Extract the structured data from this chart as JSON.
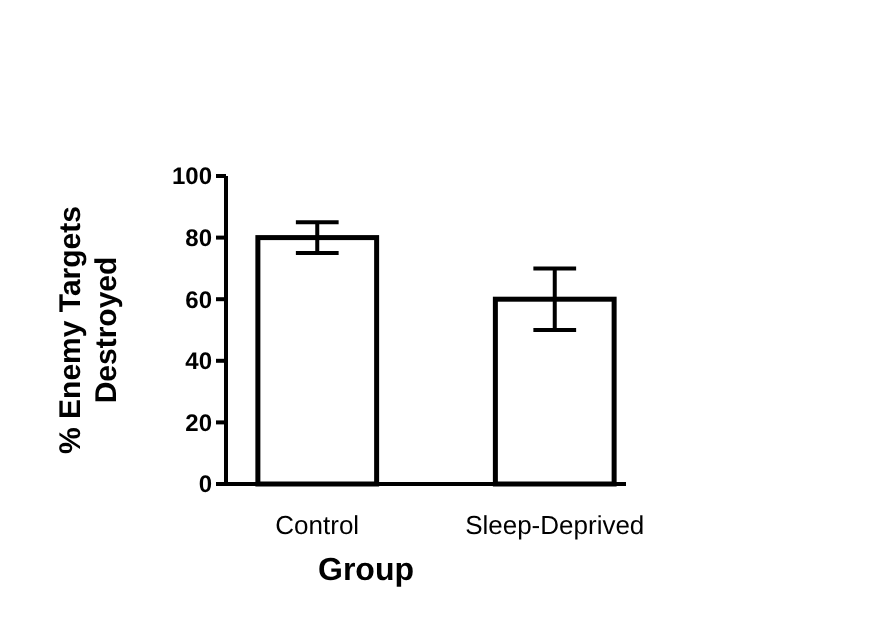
{
  "chart_data": {
    "type": "bar",
    "xlabel": "Group",
    "ylabel": "% Enemy Targets\nDestroyed",
    "categories": [
      "Control",
      "Sleep-Deprived"
    ],
    "values": [
      80,
      60
    ],
    "errors": [
      5,
      10
    ],
    "color": "#ffffff",
    "ylim": [
      0,
      100
    ],
    "yticks": [
      0,
      20,
      40,
      60,
      80,
      100
    ],
    "grid": false
  }
}
